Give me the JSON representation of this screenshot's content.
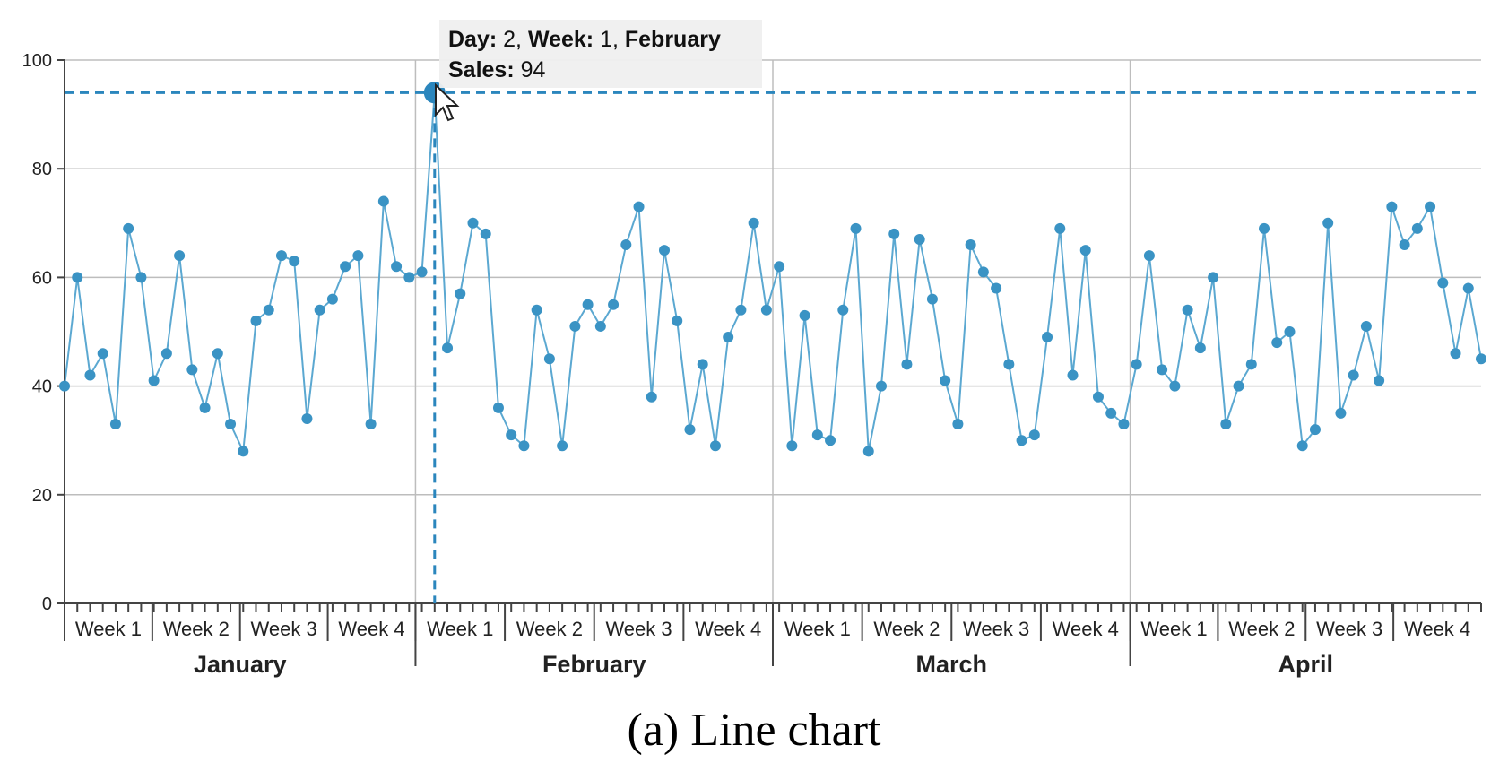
{
  "caption": "(a) Line chart",
  "colors": {
    "line": "#5ba8d1",
    "marker": "#3a93c4",
    "highlight": "#2b86bd",
    "grid": "#bdbdbd",
    "axis": "#444444",
    "tooltip_bg": "#efefef"
  },
  "tooltip": {
    "day_key": "Day:",
    "day_val": " 2, ",
    "week_key": "Week:",
    "week_val": " 1, ",
    "month_val": "February",
    "sales_key": "Sales:",
    "sales_val": " 94",
    "index": 29
  },
  "chart_data": {
    "type": "line",
    "title": "",
    "xlabel": "",
    "ylabel": "",
    "ylim": [
      0,
      100
    ],
    "yticks": [
      0,
      20,
      40,
      60,
      80,
      100
    ],
    "grid": true,
    "months": [
      {
        "name": "January",
        "weeks": [
          "Week 1",
          "Week 2",
          "Week 3",
          "Week 4"
        ]
      },
      {
        "name": "February",
        "weeks": [
          "Week 1",
          "Week 2",
          "Week 3",
          "Week 4"
        ]
      },
      {
        "name": "March",
        "weeks": [
          "Week 1",
          "Week 2",
          "Week 3",
          "Week 4"
        ]
      },
      {
        "name": "April",
        "weeks": [
          "Week 1",
          "Week 2",
          "Week 3",
          "Week 4"
        ]
      }
    ],
    "series": [
      {
        "values": [
          40,
          60,
          42,
          46,
          33,
          69,
          60,
          41,
          46,
          64,
          43,
          36,
          46,
          33,
          28,
          52,
          54,
          64,
          63,
          34,
          54,
          56,
          62,
          64,
          33,
          74,
          62,
          60,
          61,
          94,
          47,
          57,
          70,
          68,
          36,
          31,
          29,
          54,
          45,
          29,
          51,
          55,
          51,
          55,
          66,
          73,
          38,
          65,
          52,
          32,
          44,
          29,
          49,
          54,
          70,
          54,
          62,
          29,
          53,
          31,
          30,
          54,
          69,
          28,
          40,
          68,
          44,
          67,
          56,
          41,
          33,
          66,
          61,
          58,
          44,
          30,
          31,
          49,
          69,
          42,
          65,
          38,
          35,
          33,
          44,
          64,
          43,
          40,
          54,
          47,
          60,
          33,
          40,
          44,
          69,
          48,
          50,
          29,
          32,
          70,
          35,
          42,
          51,
          41,
          73,
          66,
          69,
          73,
          59,
          46,
          58,
          45
        ]
      }
    ]
  }
}
